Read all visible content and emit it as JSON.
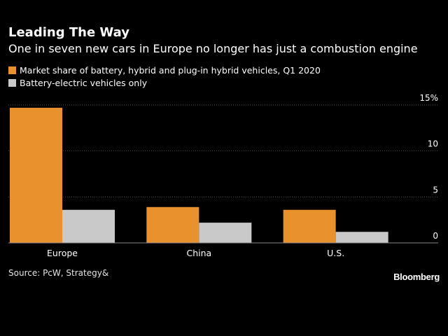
{
  "header": {
    "title": "Leading The Way",
    "subtitle": "One in seven new cars in Europe no longer has just a combustion engine"
  },
  "colors": {
    "background": "#000000",
    "series_1": "#e8912d",
    "series_2": "#c9c9c9",
    "gridline": "#555555",
    "text": "#ffffff"
  },
  "chart_data": {
    "type": "bar",
    "title": "Leading The Way",
    "subtitle": "One in seven new cars in Europe no longer has just a combustion engine",
    "categories": [
      "Europe",
      "China",
      "U.S."
    ],
    "series": [
      {
        "name": "Market share of battery, hybrid and plug-in hybrid vehicles, Q1 2020",
        "values": [
          14.7,
          3.9,
          3.6
        ],
        "color": "#e8912d"
      },
      {
        "name": "Battery-electric vehicles only",
        "values": [
          3.6,
          2.2,
          1.2
        ],
        "color": "#c9c9c9"
      }
    ],
    "yticks": [
      {
        "value": 0,
        "label": "0"
      },
      {
        "value": 5,
        "label": "5"
      },
      {
        "value": 10,
        "label": "10"
      },
      {
        "value": 15,
        "label": "15%"
      }
    ],
    "ylim": [
      0,
      15
    ],
    "xlabel": "",
    "ylabel": "",
    "grid": true,
    "legend": "top-left",
    "y_axis_side": "right"
  },
  "footer": {
    "source": "Source: PcW, Strategy&",
    "brand": "Bloomberg"
  }
}
